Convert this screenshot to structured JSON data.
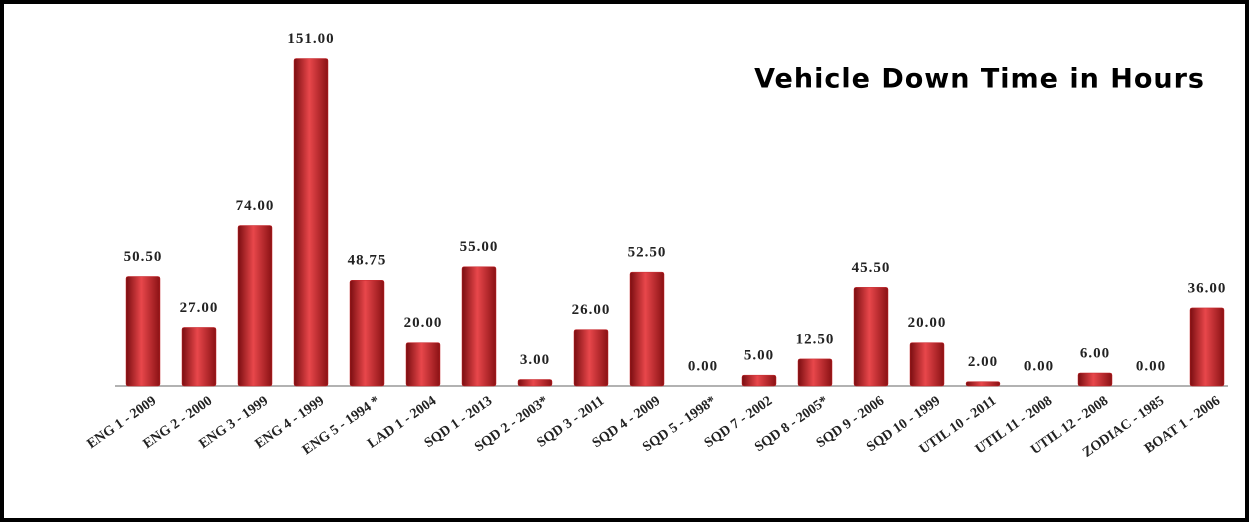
{
  "chart_data": {
    "type": "bar",
    "title": "Vehicle Down Time in Hours",
    "categories": [
      "ENG 1 - 2009",
      "ENG 2 - 2000",
      "ENG 3 - 1999",
      "ENG 4 - 1999",
      "ENG 5 - 1994 *",
      "LAD 1 - 2004",
      "SQD 1 - 2013",
      "SQD 2 - 2003*",
      "SQD 3 - 2011",
      "SQD 4 - 2009",
      "SQD 5 - 1998*",
      "SQD 7 - 2002",
      "SQD 8 - 2005*",
      "SQD 9 - 2006",
      "SQD 10 - 1999",
      "UTIL 10 - 2011",
      "UTIL 11 - 2008",
      "UTIL 12 - 2008",
      "ZODIAC - 1985",
      "BOAT 1 - 2006"
    ],
    "values": [
      50.5,
      27,
      74,
      151,
      48.75,
      20,
      55,
      3,
      26,
      52.5,
      0,
      5,
      12.5,
      45.5,
      20,
      2,
      0,
      6,
      0,
      36
    ],
    "value_labels": [
      "50.50",
      "27.00",
      "74.00",
      "151.00",
      "48.75",
      "20.00",
      "55.00",
      "3.00",
      "26.00",
      "52.50",
      "0.00",
      "5.00",
      "12.50",
      "45.50",
      "20.00",
      "2.00",
      "0.00",
      "6.00",
      "0.00",
      "36.00"
    ],
    "color": "#c8262b",
    "ylim": [
      0,
      160
    ]
  }
}
